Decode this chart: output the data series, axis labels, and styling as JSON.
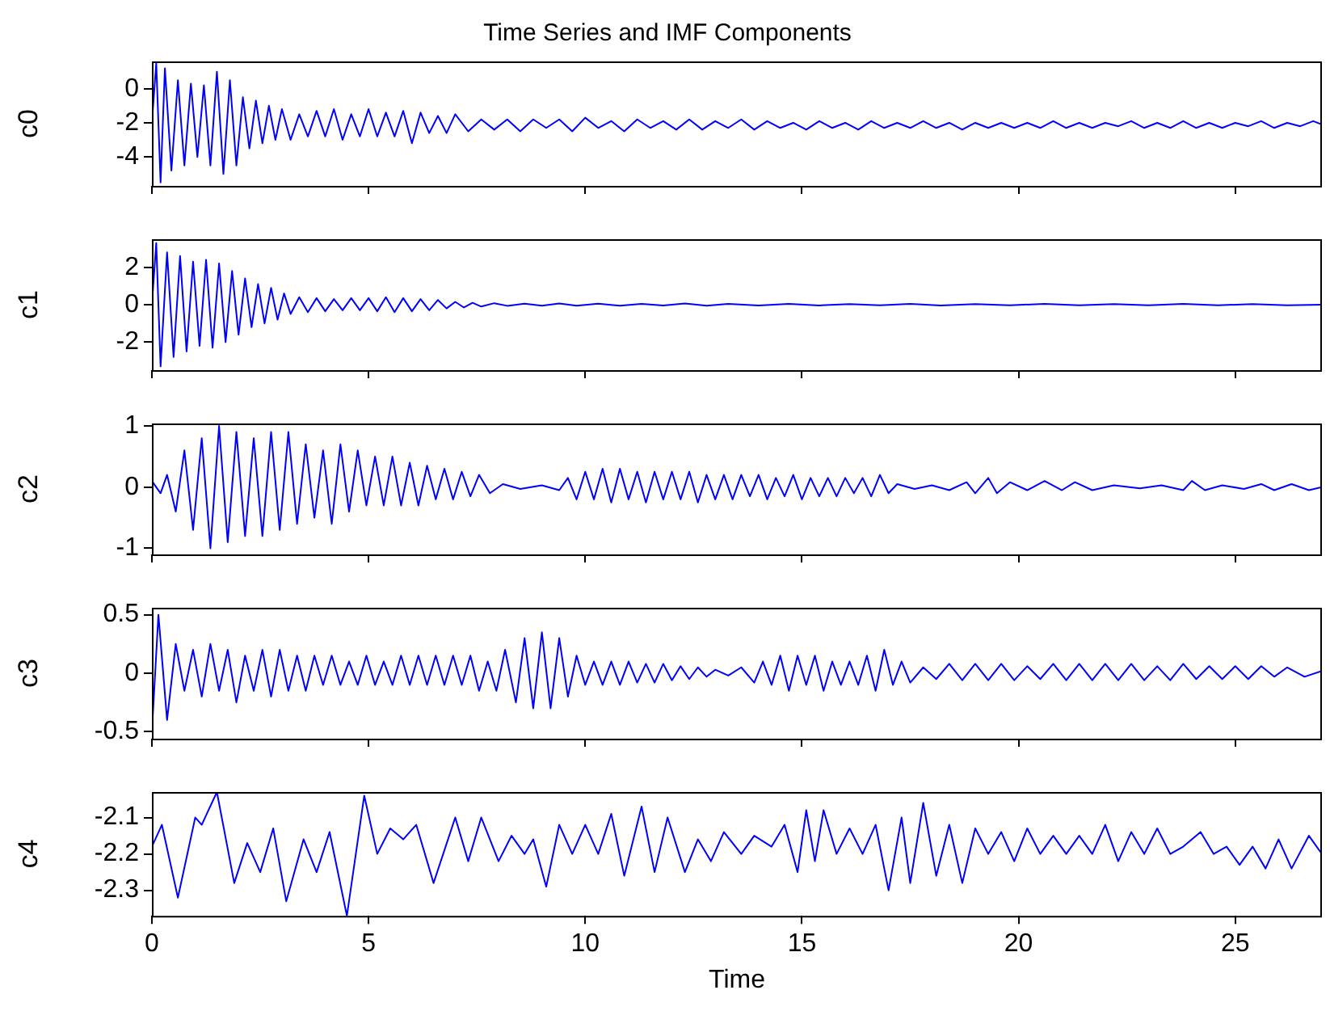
{
  "chart_data": [
    {
      "type": "line",
      "title": "Time Series and IMF Components",
      "ylabel": "c0",
      "color": "#0000ff",
      "xlim": [
        0,
        27
      ],
      "xticks": [
        0,
        5,
        10,
        15,
        20,
        25
      ],
      "ylim": [
        -5.7,
        1.6
      ],
      "yticks": [
        -4,
        -2,
        0
      ],
      "tick_labels": "y",
      "x": [
        0,
        0.1,
        0.2,
        0.3,
        0.45,
        0.6,
        0.75,
        0.9,
        1.05,
        1.2,
        1.35,
        1.5,
        1.65,
        1.8,
        1.95,
        2.1,
        2.25,
        2.4,
        2.55,
        2.7,
        2.85,
        3.0,
        3.2,
        3.4,
        3.6,
        3.8,
        4.0,
        4.2,
        4.4,
        4.6,
        4.8,
        5.0,
        5.2,
        5.4,
        5.6,
        5.8,
        6.0,
        6.2,
        6.4,
        6.6,
        6.8,
        7.0,
        7.3,
        7.6,
        7.9,
        8.2,
        8.5,
        8.8,
        9.1,
        9.4,
        9.7,
        10,
        10.3,
        10.6,
        10.9,
        11.2,
        11.5,
        11.8,
        12.1,
        12.4,
        12.7,
        13,
        13.3,
        13.6,
        13.9,
        14.2,
        14.5,
        14.8,
        15.1,
        15.4,
        15.7,
        16,
        16.3,
        16.6,
        16.9,
        17.2,
        17.5,
        17.8,
        18.1,
        18.4,
        18.7,
        19,
        19.3,
        19.6,
        19.9,
        20.2,
        20.5,
        20.8,
        21.1,
        21.4,
        21.7,
        22,
        22.3,
        22.6,
        22.9,
        23.2,
        23.5,
        23.8,
        24.1,
        24.4,
        24.7,
        25,
        25.3,
        25.6,
        25.9,
        26.2,
        26.5,
        26.8,
        27
      ],
      "values": [
        -2,
        1.5,
        -5.5,
        1.2,
        -4.8,
        0.5,
        -4.5,
        0.3,
        -4,
        0.2,
        -4.5,
        1,
        -5,
        0.5,
        -4.5,
        -0.5,
        -3.5,
        -0.7,
        -3.2,
        -1,
        -3,
        -1.2,
        -3,
        -1.5,
        -2.8,
        -1.3,
        -2.8,
        -1.2,
        -3,
        -1.5,
        -2.8,
        -1.2,
        -2.8,
        -1.4,
        -2.8,
        -1.3,
        -3.2,
        -1.4,
        -2.6,
        -1.6,
        -2.6,
        -1.5,
        -2.5,
        -1.8,
        -2.4,
        -1.8,
        -2.5,
        -1.8,
        -2.3,
        -1.8,
        -2.5,
        -1.7,
        -2.3,
        -1.9,
        -2.5,
        -1.8,
        -2.3,
        -1.9,
        -2.4,
        -1.8,
        -2.4,
        -1.9,
        -2.3,
        -1.8,
        -2.4,
        -1.9,
        -2.3,
        -2,
        -2.4,
        -1.9,
        -2.3,
        -2,
        -2.4,
        -1.9,
        -2.3,
        -2,
        -2.3,
        -1.9,
        -2.3,
        -2,
        -2.4,
        -2,
        -2.3,
        -2,
        -2.3,
        -2,
        -2.3,
        -1.9,
        -2.3,
        -2,
        -2.3,
        -2,
        -2.2,
        -1.9,
        -2.3,
        -2,
        -2.3,
        -1.9,
        -2.3,
        -2,
        -2.3,
        -2,
        -2.2,
        -1.9,
        -2.3,
        -2,
        -2.2,
        -1.9,
        -2.1
      ]
    },
    {
      "type": "line",
      "ylabel": "c1",
      "color": "#0000ff",
      "xlim": [
        0,
        27
      ],
      "xticks": [
        0,
        5,
        10,
        15,
        20,
        25
      ],
      "ylim": [
        -3.5,
        3.5
      ],
      "yticks": [
        -2,
        0,
        2
      ],
      "tick_labels": "y",
      "x": [
        0,
        0.1,
        0.2,
        0.35,
        0.5,
        0.65,
        0.8,
        0.95,
        1.1,
        1.25,
        1.4,
        1.55,
        1.7,
        1.85,
        2.0,
        2.15,
        2.3,
        2.45,
        2.6,
        2.75,
        2.9,
        3.05,
        3.2,
        3.4,
        3.6,
        3.8,
        4.0,
        4.2,
        4.4,
        4.6,
        4.8,
        5.0,
        5.2,
        5.4,
        5.6,
        5.8,
        6.0,
        6.2,
        6.4,
        6.6,
        6.8,
        7.0,
        7.2,
        7.4,
        7.6,
        7.9,
        8.2,
        8.6,
        9,
        9.4,
        9.8,
        10.3,
        10.8,
        11.3,
        11.8,
        12.3,
        12.8,
        13.3,
        14,
        14.7,
        15.4,
        16.1,
        16.8,
        17.5,
        18.2,
        19,
        19.8,
        20.6,
        21.4,
        22.2,
        23,
        23.8,
        24.6,
        25.4,
        26.2,
        27
      ],
      "values": [
        0,
        3.3,
        -3.3,
        2.8,
        -2.8,
        2.6,
        -2.5,
        2.3,
        -2.2,
        2.4,
        -2.3,
        2.2,
        -2,
        1.8,
        -1.6,
        1.4,
        -1.2,
        1.1,
        -1,
        0.9,
        -0.8,
        0.6,
        -0.5,
        0.4,
        -0.4,
        0.35,
        -0.35,
        0.3,
        -0.3,
        0.35,
        -0.3,
        0.35,
        -0.35,
        0.4,
        -0.4,
        0.35,
        -0.35,
        0.3,
        -0.3,
        0.25,
        -0.2,
        0.15,
        -0.15,
        0.1,
        -0.1,
        0.08,
        -0.06,
        0.05,
        -0.05,
        0.06,
        -0.05,
        0.05,
        -0.05,
        0.04,
        -0.04,
        0.06,
        -0.05,
        0.04,
        -0.04,
        0.04,
        -0.04,
        0.03,
        -0.03,
        0.04,
        -0.04,
        0.03,
        -0.03,
        0.04,
        -0.03,
        0.03,
        -0.03,
        0.04,
        -0.03,
        0.03,
        -0.03,
        0
      ]
    },
    {
      "type": "line",
      "ylabel": "c2",
      "color": "#0000ff",
      "xlim": [
        0,
        27
      ],
      "xticks": [
        0,
        5,
        10,
        15,
        20,
        25
      ],
      "ylim": [
        -1.1,
        1.04
      ],
      "yticks": [
        -1,
        0,
        1
      ],
      "tick_labels": "y",
      "x": [
        0,
        0.2,
        0.35,
        0.55,
        0.75,
        0.95,
        1.15,
        1.35,
        1.55,
        1.75,
        1.95,
        2.15,
        2.35,
        2.55,
        2.75,
        2.95,
        3.15,
        3.35,
        3.55,
        3.75,
        3.95,
        4.15,
        4.35,
        4.55,
        4.75,
        4.95,
        5.15,
        5.35,
        5.55,
        5.75,
        5.95,
        6.15,
        6.35,
        6.55,
        6.75,
        6.95,
        7.15,
        7.35,
        7.55,
        7.8,
        8.1,
        8.5,
        9,
        9.4,
        9.6,
        9.8,
        10,
        10.2,
        10.4,
        10.6,
        10.8,
        11,
        11.2,
        11.4,
        11.6,
        11.8,
        12,
        12.2,
        12.4,
        12.6,
        12.8,
        13,
        13.2,
        13.4,
        13.6,
        13.8,
        14,
        14.2,
        14.4,
        14.6,
        14.8,
        15,
        15.2,
        15.4,
        15.6,
        15.8,
        16,
        16.2,
        16.4,
        16.6,
        16.8,
        17,
        17.2,
        17.6,
        18,
        18.4,
        18.8,
        19,
        19.3,
        19.5,
        19.8,
        20.2,
        20.6,
        21,
        21.3,
        21.7,
        22.2,
        22.8,
        23.3,
        23.8,
        24,
        24.3,
        24.7,
        25.2,
        25.6,
        25.9,
        26.3,
        26.7,
        27
      ],
      "values": [
        0.1,
        -0.1,
        0.2,
        -0.4,
        0.6,
        -0.7,
        0.8,
        -1,
        1,
        -0.9,
        0.9,
        -0.8,
        0.8,
        -0.8,
        0.9,
        -0.7,
        0.9,
        -0.6,
        0.7,
        -0.5,
        0.6,
        -0.6,
        0.7,
        -0.4,
        0.6,
        -0.3,
        0.5,
        -0.3,
        0.5,
        -0.3,
        0.4,
        -0.3,
        0.35,
        -0.2,
        0.3,
        -0.2,
        0.25,
        -0.15,
        0.2,
        -0.1,
        0.05,
        -0.03,
        0.03,
        -0.05,
        0.15,
        -0.2,
        0.25,
        -0.2,
        0.3,
        -0.25,
        0.3,
        -0.2,
        0.25,
        -0.25,
        0.25,
        -0.2,
        0.25,
        -0.2,
        0.25,
        -0.25,
        0.2,
        -0.2,
        0.2,
        -0.2,
        0.2,
        -0.15,
        0.2,
        -0.2,
        0.15,
        -0.15,
        0.2,
        -0.2,
        0.15,
        -0.15,
        0.15,
        -0.15,
        0.15,
        -0.1,
        0.15,
        -0.15,
        0.2,
        -0.1,
        0.05,
        -0.03,
        0.03,
        -0.05,
        0.08,
        -0.1,
        0.15,
        -0.1,
        0.08,
        -0.05,
        0.1,
        -0.05,
        0.08,
        -0.05,
        0.03,
        -0.02,
        0.03,
        -0.05,
        0.1,
        -0.05,
        0.03,
        -0.03,
        0.05,
        -0.05,
        0.05,
        -0.05,
        0
      ]
    },
    {
      "type": "line",
      "ylabel": "c3",
      "color": "#0000ff",
      "xlim": [
        0,
        27
      ],
      "xticks": [
        0,
        5,
        10,
        15,
        20,
        25
      ],
      "ylim": [
        -0.56,
        0.56
      ],
      "yticks": [
        -0.5,
        0,
        0.5
      ],
      "tick_labels": "y",
      "x": [
        0,
        0.15,
        0.35,
        0.55,
        0.75,
        0.95,
        1.15,
        1.35,
        1.55,
        1.75,
        1.95,
        2.15,
        2.35,
        2.55,
        2.75,
        2.95,
        3.15,
        3.35,
        3.55,
        3.75,
        3.95,
        4.15,
        4.35,
        4.55,
        4.75,
        4.95,
        5.15,
        5.35,
        5.55,
        5.75,
        5.95,
        6.15,
        6.35,
        6.55,
        6.75,
        6.95,
        7.15,
        7.35,
        7.55,
        7.75,
        7.95,
        8.15,
        8.4,
        8.6,
        8.8,
        9.0,
        9.2,
        9.4,
        9.6,
        9.8,
        10,
        10.2,
        10.4,
        10.6,
        10.8,
        11,
        11.2,
        11.4,
        11.6,
        11.8,
        12,
        12.2,
        12.4,
        12.6,
        12.8,
        13.0,
        13.3,
        13.6,
        13.9,
        14.1,
        14.3,
        14.5,
        14.7,
        14.9,
        15.1,
        15.3,
        15.5,
        15.7,
        15.9,
        16.1,
        16.3,
        16.5,
        16.7,
        16.9,
        17.1,
        17.3,
        17.5,
        17.8,
        18.1,
        18.4,
        18.7,
        19,
        19.3,
        19.6,
        19.9,
        20.2,
        20.5,
        20.8,
        21.1,
        21.4,
        21.7,
        22,
        22.3,
        22.6,
        22.9,
        23.2,
        23.5,
        23.8,
        24.1,
        24.4,
        24.7,
        25,
        25.3,
        25.6,
        25.9,
        26.2,
        26.6,
        27
      ],
      "values": [
        -0.5,
        0.5,
        -0.4,
        0.25,
        -0.15,
        0.2,
        -0.2,
        0.25,
        -0.15,
        0.2,
        -0.25,
        0.15,
        -0.15,
        0.2,
        -0.2,
        0.2,
        -0.15,
        0.15,
        -0.15,
        0.15,
        -0.1,
        0.15,
        -0.1,
        0.1,
        -0.1,
        0.15,
        -0.1,
        0.1,
        -0.1,
        0.15,
        -0.1,
        0.15,
        -0.1,
        0.15,
        -0.1,
        0.15,
        -0.1,
        0.15,
        -0.15,
        0.1,
        -0.15,
        0.2,
        -0.25,
        0.3,
        -0.3,
        0.35,
        -0.3,
        0.3,
        -0.2,
        0.15,
        -0.1,
        0.1,
        -0.1,
        0.1,
        -0.1,
        0.1,
        -0.08,
        0.08,
        -0.08,
        0.08,
        -0.06,
        0.06,
        -0.05,
        0.05,
        -0.03,
        0.03,
        -0.02,
        0.05,
        -0.08,
        0.1,
        -0.1,
        0.15,
        -0.15,
        0.15,
        -0.1,
        0.15,
        -0.15,
        0.1,
        -0.1,
        0.1,
        -0.1,
        0.15,
        -0.15,
        0.2,
        -0.1,
        0.1,
        -0.08,
        0.05,
        -0.05,
        0.08,
        -0.06,
        0.08,
        -0.06,
        0.08,
        -0.06,
        0.06,
        -0.05,
        0.08,
        -0.06,
        0.08,
        -0.06,
        0.08,
        -0.06,
        0.08,
        -0.06,
        0.06,
        -0.06,
        0.08,
        -0.05,
        0.06,
        -0.05,
        0.06,
        -0.05,
        0.06,
        -0.03,
        0.05,
        -0.03,
        0.02
      ]
    },
    {
      "type": "line",
      "ylabel": "c4",
      "xlabel": "Time",
      "color": "#0000ff",
      "xlim": [
        0,
        27
      ],
      "xticks": [
        0,
        5,
        10,
        15,
        20,
        25
      ],
      "ylim": [
        -2.37,
        -2.03
      ],
      "yticks": [
        -2.3,
        -2.2,
        -2.1
      ],
      "x": [
        0,
        0.23,
        0.6,
        1.0,
        1.15,
        1.5,
        1.9,
        2.2,
        2.5,
        2.8,
        3.1,
        3.5,
        3.8,
        4.1,
        4.5,
        4.9,
        5.2,
        5.5,
        5.8,
        6.1,
        6.5,
        7.0,
        7.3,
        7.6,
        8.0,
        8.3,
        8.6,
        8.8,
        9.1,
        9.4,
        9.7,
        10.0,
        10.3,
        10.6,
        10.9,
        11.3,
        11.6,
        11.9,
        12.3,
        12.6,
        12.9,
        13.2,
        13.6,
        13.9,
        14.3,
        14.6,
        14.9,
        15.1,
        15.3,
        15.5,
        15.8,
        16.1,
        16.4,
        16.7,
        17.0,
        17.3,
        17.5,
        17.8,
        18.1,
        18.4,
        18.7,
        19.0,
        19.3,
        19.6,
        19.9,
        20.2,
        20.5,
        20.8,
        21.1,
        21.4,
        21.7,
        22.0,
        22.3,
        22.6,
        22.9,
        23.2,
        23.5,
        23.8,
        24.2,
        24.5,
        24.8,
        25.1,
        25.4,
        25.7,
        26.0,
        26.3,
        26.7,
        27
      ],
      "values": [
        -2.18,
        -2.12,
        -2.32,
        -2.1,
        -2.12,
        -2.03,
        -2.28,
        -2.17,
        -2.25,
        -2.13,
        -2.33,
        -2.16,
        -2.25,
        -2.14,
        -2.37,
        -2.04,
        -2.2,
        -2.13,
        -2.16,
        -2.12,
        -2.28,
        -2.1,
        -2.22,
        -2.1,
        -2.22,
        -2.15,
        -2.2,
        -2.16,
        -2.29,
        -2.12,
        -2.2,
        -2.12,
        -2.2,
        -2.09,
        -2.26,
        -2.07,
        -2.25,
        -2.1,
        -2.25,
        -2.16,
        -2.22,
        -2.14,
        -2.2,
        -2.15,
        -2.18,
        -2.12,
        -2.25,
        -2.08,
        -2.22,
        -2.08,
        -2.2,
        -2.13,
        -2.2,
        -2.12,
        -2.3,
        -2.1,
        -2.28,
        -2.06,
        -2.26,
        -2.12,
        -2.28,
        -2.13,
        -2.2,
        -2.14,
        -2.22,
        -2.13,
        -2.2,
        -2.15,
        -2.2,
        -2.15,
        -2.2,
        -2.12,
        -2.22,
        -2.14,
        -2.2,
        -2.13,
        -2.2,
        -2.18,
        -2.14,
        -2.2,
        -2.18,
        -2.23,
        -2.18,
        -2.24,
        -2.16,
        -2.24,
        -2.15,
        -2.2
      ]
    }
  ]
}
